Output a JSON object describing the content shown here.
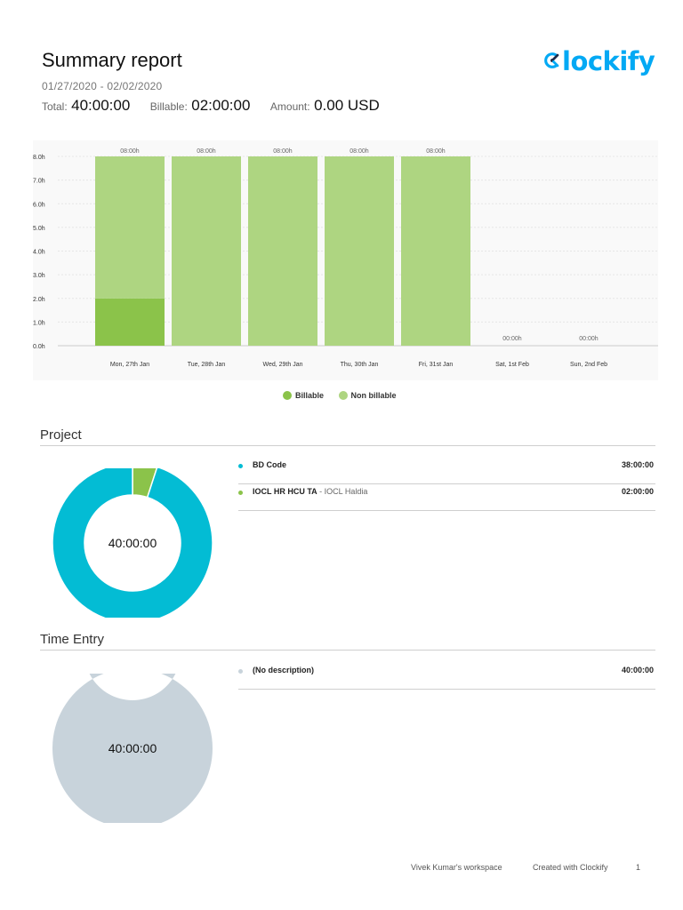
{
  "header": {
    "title": "Summary report",
    "date_range": "01/27/2020 - 02/02/2020",
    "total_label": "Total:",
    "total_value": "40:00:00",
    "billable_label": "Billable:",
    "billable_value": "02:00:00",
    "amount_label": "Amount:",
    "amount_value": "0.00 USD",
    "logo_text": "lockify"
  },
  "colors": {
    "billable": "#8bc34a",
    "non_billable": "#aed581",
    "bd_code": "#03bcd4",
    "iocl": "#8bc34a",
    "no_description": "#c8d3db",
    "brand": "#03a9f4"
  },
  "chart_data": {
    "type": "bar",
    "stacked": true,
    "categories": [
      "Mon, 27th Jan",
      "Tue, 28th Jan",
      "Wed, 29th Jan",
      "Thu, 30th Jan",
      "Fri, 31st Jan",
      "Sat, 1st Feb",
      "Sun, 2nd Feb"
    ],
    "series": [
      {
        "name": "Billable",
        "values": [
          2,
          0,
          0,
          0,
          0,
          0,
          0
        ]
      },
      {
        "name": "Non billable",
        "values": [
          6,
          8,
          8,
          8,
          8,
          0,
          0
        ]
      }
    ],
    "bar_labels": [
      "08:00h",
      "08:00h",
      "08:00h",
      "08:00h",
      "08:00h",
      "00:00h",
      "00:00h"
    ],
    "y_ticks": [
      "0.0h",
      "1.0h",
      "2.0h",
      "3.0h",
      "4.0h",
      "5.0h",
      "6.0h",
      "7.0h",
      "8.0h"
    ],
    "ylim": [
      0,
      8
    ],
    "grid": true,
    "legend": "bottom-center"
  },
  "project": {
    "title": "Project",
    "total": "40:00:00",
    "items": [
      {
        "name": "BD Code",
        "client": "",
        "duration": "38:00:00",
        "hours": 38,
        "color": "#03bcd4"
      },
      {
        "name": "IOCL HR HCU TA",
        "client": " - IOCL Haldia",
        "duration": "02:00:00",
        "hours": 2,
        "color": "#8bc34a"
      }
    ]
  },
  "time_entry": {
    "title": "Time Entry",
    "total": "40:00:00",
    "items": [
      {
        "name": "(No description)",
        "duration": "40:00:00",
        "hours": 40,
        "color": "#c8d3db"
      }
    ]
  },
  "footer": {
    "workspace": "Vivek Kumar's workspace",
    "created_with": "Created with Clockify",
    "page": "1"
  }
}
